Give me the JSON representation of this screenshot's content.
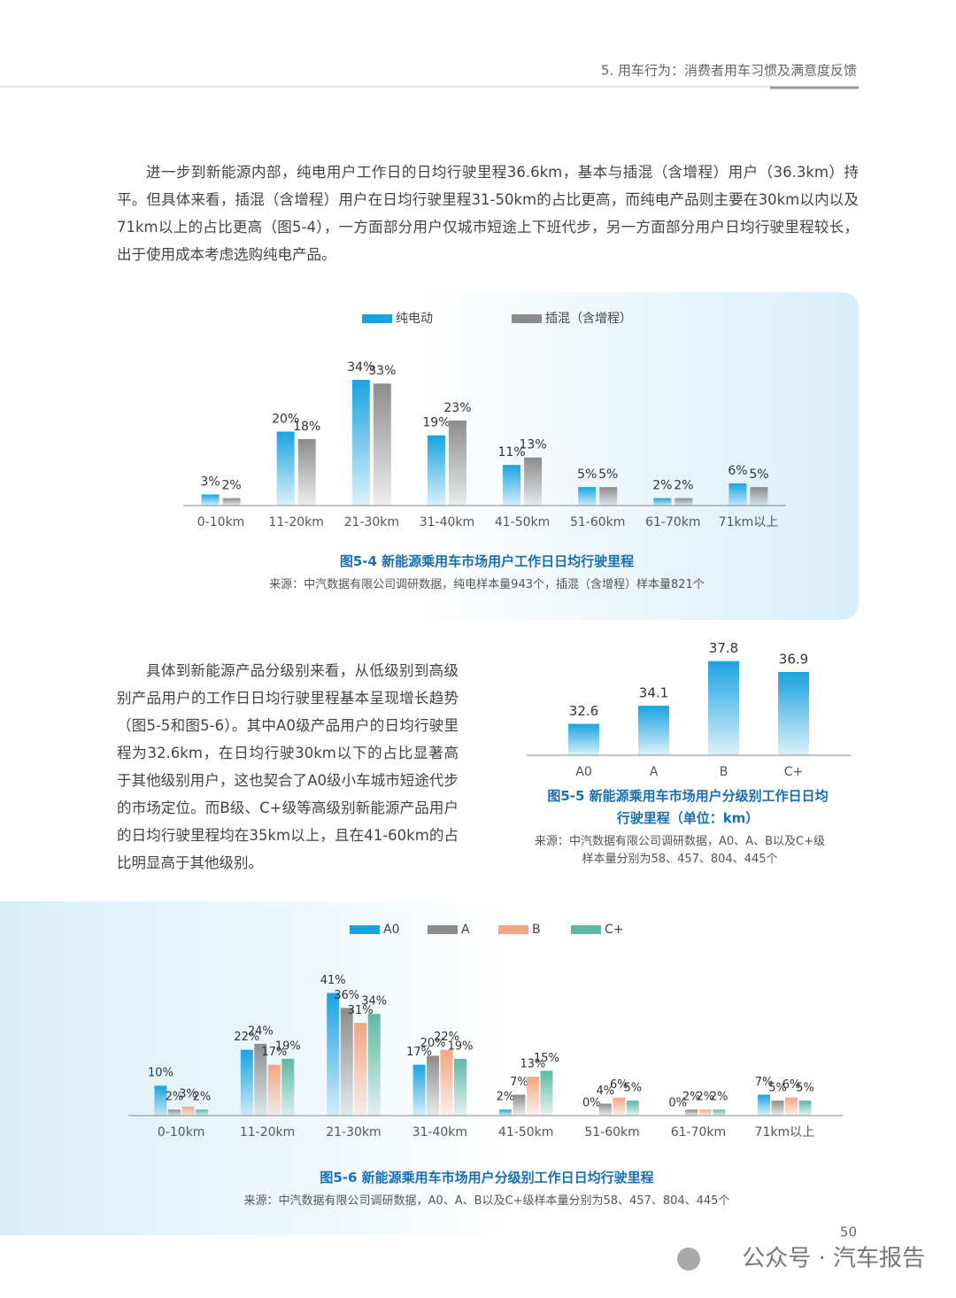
{
  "header": {
    "section": "5. 用车行为：消费者用车习惯及满意度反馈"
  },
  "paragraphs": [
    "进一步到新能源内部，纯电用户工作日的日均行驶里程36.6km，基本与插混（含增程）用户（36.3km）持平。但具体来看，插混（含增程）用户在日均行驶里程31-50km的占比更高，而纯电产品则主要在30km以内以及71km以上的占比更高（图5-4），一方面部分用户仅城市短途上下班代步，另一方面部分用户日均行驶里程较长，出于使用成本考虑选购纯电产品。",
    "具体到新能源产品分级别来看，从低级别到高级别产品用户的工作日日均行驶里程基本呈现增长趋势（图5-5和图5-6）。其中A0级产品用户的日均行驶里程为32.6km，在日均行驶30km以下的占比显著高于其他级别用户，这也契合了A0级小车城市短途代步的市场定位。而B级、C+级等高级别新能源产品用户的日均行驶里程均在35km以上，且在41-60km的占比明显高于其他级别。"
  ],
  "chart_data": [
    {
      "type": "bar",
      "title": "图5-4 新能源乘用车市场用户工作日日均行驶里程",
      "source": "来源：中汽数据有限公司调研数据，纯电样本量943个，插混（含增程）样本量821个",
      "categories": [
        "0-10km",
        "11-20km",
        "21-30km",
        "31-40km",
        "41-50km",
        "51-60km",
        "61-70km",
        "71km以上"
      ],
      "ylim": [
        0,
        40
      ],
      "series": [
        {
          "name": "纯电动",
          "color": "#1aa3e0",
          "values": [
            3,
            20,
            34,
            19,
            11,
            5,
            2,
            6
          ],
          "value_labels": [
            "3%",
            "20%",
            "34%",
            "19%",
            "11%",
            "5%",
            "2%",
            "6%"
          ]
        },
        {
          "name": "插混（含增程）",
          "color": "#8c8c8c",
          "values": [
            2,
            18,
            33,
            23,
            13,
            5,
            2,
            5
          ],
          "value_labels": [
            "2%",
            "18%",
            "33%",
            "23%",
            "13%",
            "5%",
            "2%",
            "5%"
          ]
        }
      ]
    },
    {
      "type": "bar",
      "title": "图5-5 新能源乘用车市场用户分级别工作日日均行驶里程（单位：km）",
      "source": "来源：中汽数据有限公司调研数据，A0、A、B以及C+级样本量分别为58、457、804、445个",
      "categories": [
        "A0",
        "A",
        "B",
        "C+"
      ],
      "ylim": [
        30,
        38
      ],
      "color": "#1aa3e0",
      "values": [
        32.6,
        34.1,
        37.8,
        36.9
      ]
    },
    {
      "type": "bar",
      "title": "图5-6 新能源乘用车市场用户分级别工作日日均行驶里程",
      "source": "来源：中汽数据有限公司调研数据，A0、A、B以及C+级样本量分别为58、457、804、445个",
      "categories": [
        "0-10km",
        "11-20km",
        "21-30km",
        "31-40km",
        "41-50km",
        "51-60km",
        "61-70km",
        "71km以上"
      ],
      "ylim": [
        0,
        45
      ],
      "series": [
        {
          "name": "A0",
          "color": "#1aa3e0",
          "values": [
            10,
            22,
            41,
            17,
            2,
            0,
            0,
            7
          ],
          "value_labels": [
            "10%",
            "22%",
            "41%",
            "17%",
            "2%",
            "0%",
            "0%",
            "7%"
          ]
        },
        {
          "name": "A",
          "color": "#8c8c8c",
          "values": [
            2,
            24,
            36,
            20,
            7,
            4,
            2,
            5
          ],
          "value_labels": [
            "2%",
            "24%",
            "36%",
            "20%",
            "7%",
            "4%",
            "2%",
            "5%"
          ]
        },
        {
          "name": "B",
          "color": "#f4a582",
          "values": [
            3,
            17,
            31,
            22,
            13,
            6,
            2,
            6
          ],
          "value_labels": [
            "3%",
            "17%",
            "31%",
            "22%",
            "13%",
            "6%",
            "2%",
            "6%"
          ]
        },
        {
          "name": "C+",
          "color": "#5fb8a6",
          "values": [
            2,
            19,
            34,
            19,
            15,
            5,
            2,
            5
          ],
          "value_labels": [
            "2%",
            "19%",
            "34%",
            "19%",
            "15%",
            "5%",
            "2%",
            "5%"
          ]
        }
      ]
    }
  ],
  "footer": {
    "page_number": "50",
    "watermark": "公众号 · 汽车报告"
  }
}
